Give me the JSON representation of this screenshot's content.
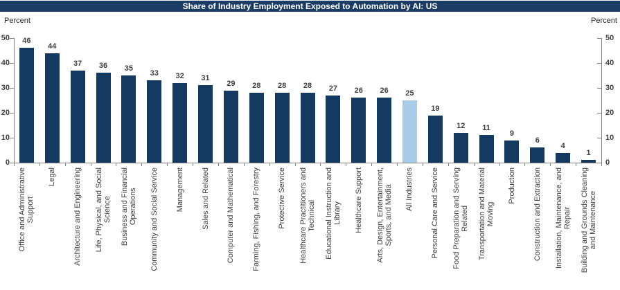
{
  "chart_data": {
    "type": "bar",
    "title": "Share of Industry Employment Exposed to Automation by AI: US",
    "ylabel": "Percent",
    "ylabel_right": "Percent",
    "ylim": [
      0,
      50
    ],
    "yticks": [
      0,
      10,
      20,
      30,
      40,
      50
    ],
    "grid": false,
    "legend": "none",
    "bar_color": "#143A61",
    "highlight_color": "#A9CCE9",
    "axis_color": "#808080",
    "title_bg_color": "#1B3D65",
    "title_text_color": "#FFFFFF",
    "highlight_index": 15,
    "categories": [
      "Office and Administrative Support",
      "Legal",
      "Architecture and Engineering",
      "Life, Physical, and Social Science",
      "Business and Financial Operations",
      "Community and Social Service",
      "Management",
      "Sales and Related",
      "Computer and Mathematical",
      "Farming, Fishing, and Forestry",
      "Protective Service",
      "Healthcare Practitioners and Technical",
      "Educational Instruction and Library",
      "Healthcare Support",
      "Arts, Design, Entertainment, Sports, and Media",
      "All Industries",
      "Personal Care and Service",
      "Food Preparation and Serving Related",
      "Transportation and Material Moving",
      "Production",
      "Construction and Extraction",
      "Installation, Maintenance, and Repair",
      "Building and Grounds Cleaning and Maintenance"
    ],
    "values": [
      46,
      44,
      37,
      36,
      35,
      33,
      32,
      31,
      29,
      28,
      28,
      28,
      27,
      26,
      26,
      25,
      19,
      12,
      11,
      9,
      6,
      4,
      1
    ],
    "category_display_lines": [
      [
        "Office and Administrative",
        "Support"
      ],
      [
        "Legal"
      ],
      [
        "Architecture and Engineering"
      ],
      [
        "Life, Physical, and Social",
        "Science"
      ],
      [
        "Business and Financial",
        "Operations"
      ],
      [
        "Community and Social Service"
      ],
      [
        "Management"
      ],
      [
        "Sales and Related"
      ],
      [
        "Computer and Mathematical"
      ],
      [
        "Farming, Fishing, and Forestry"
      ],
      [
        "Protective Service"
      ],
      [
        "Healthcare Practitioners and",
        "Technical"
      ],
      [
        "Educational Instruction and",
        "Library"
      ],
      [
        "Healthcare Support"
      ],
      [
        "Arts, Design, Entertainment,",
        "Sports, and Media"
      ],
      [
        "All Industries"
      ],
      [
        "Personal Care and Service"
      ],
      [
        "Food Preparation and Serving",
        "Related"
      ],
      [
        "Transportation and Material",
        "Moving"
      ],
      [
        "Production"
      ],
      [
        "Construction and Extraction"
      ],
      [
        "Installation, Maintenance, and",
        "Repair"
      ],
      [
        "Building and Grounds Cleaning",
        "and Maintenance"
      ]
    ]
  }
}
